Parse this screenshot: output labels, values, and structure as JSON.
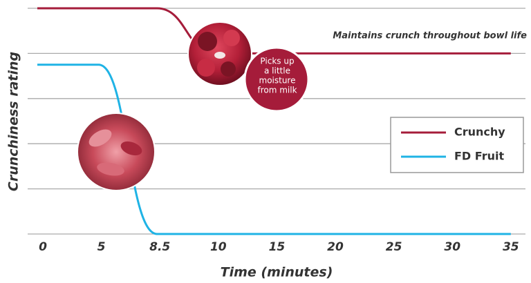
{
  "chart_data": {
    "type": "line",
    "y_label": "Crunchiness rating",
    "x_label": "Time (minutes)",
    "categories": [
      "0",
      "5",
      "8.5",
      "10",
      "15",
      "20",
      "25",
      "30",
      "35"
    ],
    "series": [
      {
        "name": "Crunchy",
        "color": "#a51c3a",
        "values": [
          5,
          5,
          5,
          4,
          4,
          4,
          4,
          4,
          4
        ]
      },
      {
        "name": "FD Fruit",
        "color": "#1fb3e5",
        "values": [
          3.75,
          3.75,
          0,
          0,
          0,
          0,
          0,
          0,
          0
        ]
      }
    ],
    "ylim": [
      0,
      5
    ],
    "yticks": [
      0,
      1,
      2,
      3,
      4,
      5
    ],
    "grid": true,
    "legend": "right",
    "annotations": {
      "crunch": "Maintains crunch throughout bowl life",
      "moisture": [
        "Picks up",
        "a little",
        "moisture",
        "from milk"
      ]
    }
  }
}
